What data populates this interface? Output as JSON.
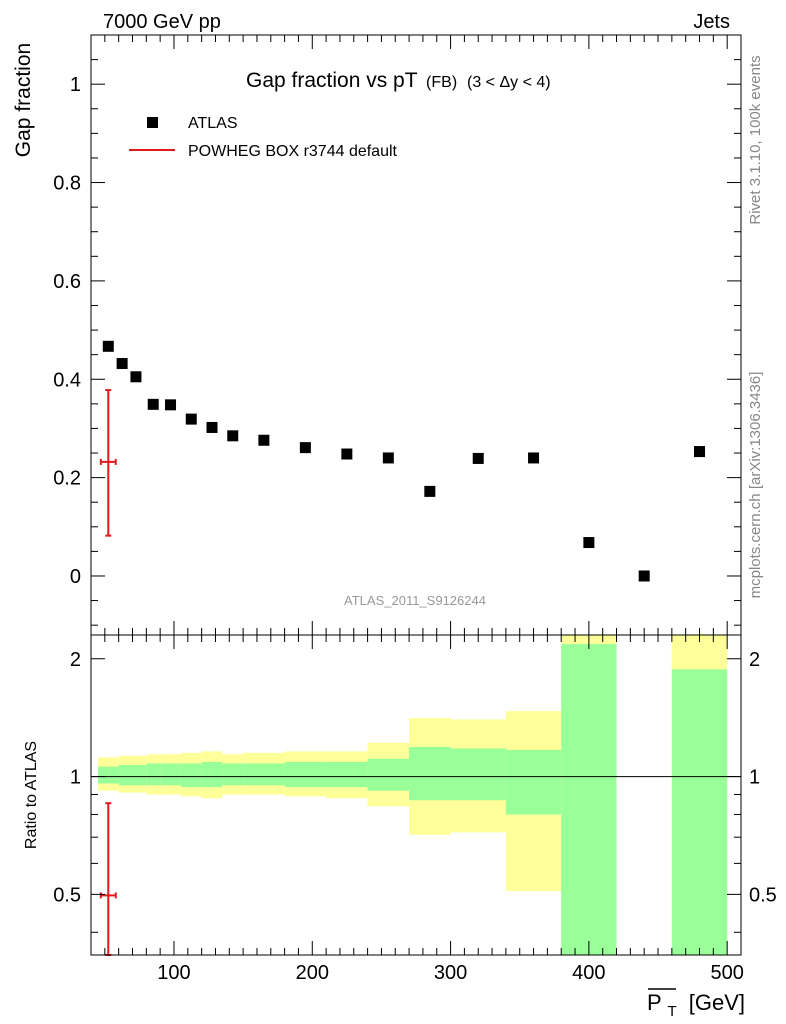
{
  "header": {
    "beam_label": "7000 GeV pp",
    "process_label": "Jets"
  },
  "side_labels": {
    "rivet": "Rivet 3.1.10,  100k events",
    "mcplots": "mcplots.cern.ch [arXiv:1306.3436]"
  },
  "chart_data": {
    "type": "scatter",
    "title_main": "Gap fraction vs pT",
    "title_sub": "(FB)",
    "title_cond": "(3 < Δy < 4)",
    "analysis_id": "ATLAS_2011_S9126244",
    "ylabel": "Gap fraction",
    "ratio_ylabel": "Ratio to ATLAS",
    "xlabel": "P̅T [GeV]",
    "xlabel_main": "P",
    "xlabel_sub": "T",
    "xlabel_unit": "[GeV]",
    "xlim": [
      40,
      510
    ],
    "ylim": [
      -0.12,
      1.1
    ],
    "ratio_ylim": [
      0.35,
      2.3
    ],
    "x_ticks": [
      100,
      200,
      300,
      400,
      500
    ],
    "x_tick_labels": [
      "100",
      "200",
      "300",
      "400",
      "500"
    ],
    "y_ticks": [
      0,
      0.2,
      0.4,
      0.6,
      0.8,
      1.0
    ],
    "y_tick_labels": [
      "0",
      "0.2",
      "0.4",
      "0.6",
      "0.8",
      "1"
    ],
    "ratio_ticks": [
      0.5,
      1,
      2
    ],
    "ratio_tick_labels": [
      "0.5",
      "1",
      "2"
    ],
    "legend": [
      {
        "label": "ATLAS",
        "marker": "square",
        "color": "#000000"
      },
      {
        "label": "POWHEG BOX r3744 default",
        "marker": "line",
        "color": "#e31a1c"
      }
    ],
    "series": [
      {
        "name": "ATLAS",
        "x": [
          52.5,
          62.5,
          72.5,
          85,
          97.5,
          112.5,
          127.5,
          142.5,
          165,
          195,
          225,
          255,
          285,
          320,
          360,
          400,
          440,
          480
        ],
        "y": [
          0.467,
          0.432,
          0.405,
          0.349,
          0.348,
          0.319,
          0.302,
          0.285,
          0.276,
          0.261,
          0.248,
          0.24,
          0.172,
          0.239,
          0.24,
          0.068,
          0.0,
          0.253
        ]
      },
      {
        "name": "POWHEG BOX r3744 default",
        "x": [
          52.5
        ],
        "y": [
          0.232
        ],
        "y_err_low": [
          0.082
        ],
        "y_err_high": [
          0.378
        ],
        "x_err": [
          2.5
        ],
        "ratio": [
          0.497
        ],
        "ratio_err_low": [
          0.35
        ],
        "ratio_err_high": [
          0.855
        ]
      }
    ],
    "ratio_bands": {
      "x_edges": [
        45,
        60,
        70,
        80,
        90,
        105,
        120,
        135,
        150,
        180,
        210,
        240,
        270,
        300,
        340,
        380,
        420,
        460,
        500
      ],
      "green_high": [
        1.06,
        1.07,
        1.07,
        1.08,
        1.08,
        1.08,
        1.09,
        1.08,
        1.08,
        1.09,
        1.09,
        1.11,
        1.19,
        1.18,
        1.17,
        2.18,
        null,
        1.88
      ],
      "green_low": [
        0.96,
        0.95,
        0.95,
        0.95,
        0.95,
        0.94,
        0.94,
        0.95,
        0.95,
        0.94,
        0.94,
        0.92,
        0.87,
        0.87,
        0.8,
        0.35,
        null,
        0.35
      ],
      "yellow_high": [
        1.12,
        1.13,
        1.13,
        1.14,
        1.14,
        1.15,
        1.16,
        1.14,
        1.15,
        1.16,
        1.16,
        1.22,
        1.41,
        1.4,
        1.47,
        2.3,
        null,
        2.3
      ],
      "yellow_low": [
        0.92,
        0.91,
        0.91,
        0.9,
        0.9,
        0.89,
        0.88,
        0.9,
        0.9,
        0.89,
        0.88,
        0.84,
        0.71,
        0.72,
        0.51,
        0.35,
        null,
        0.35
      ],
      "colors": {
        "green": "#99ff99",
        "yellow": "#ffff99"
      }
    }
  }
}
